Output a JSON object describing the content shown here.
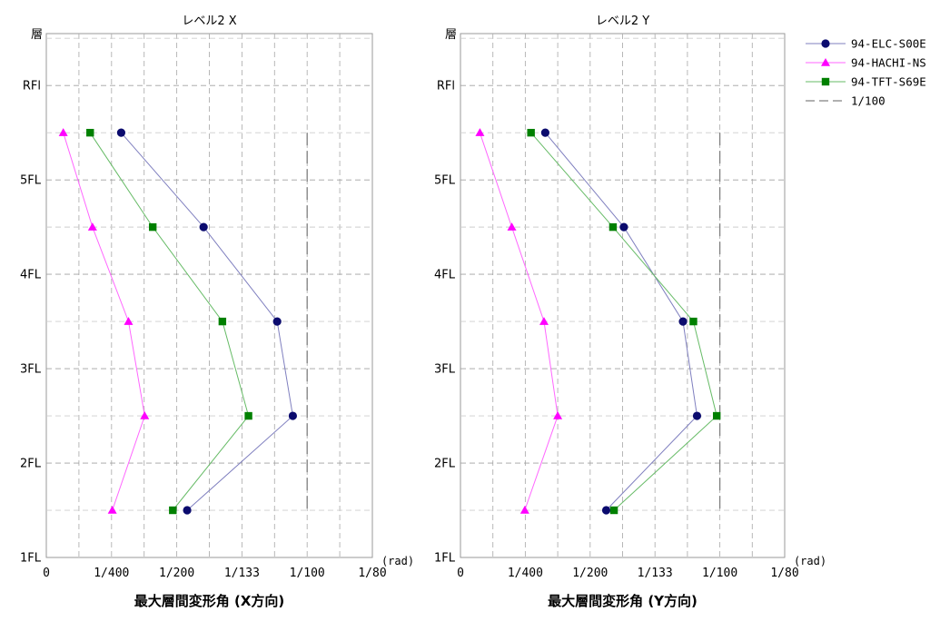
{
  "chart_data": [
    {
      "type": "line",
      "title": "レベル2 X",
      "xlabel": "最大層間変形角 (X方向)",
      "ylabel": "層",
      "x_unit": "(rad)",
      "x_ticks": [
        "0",
        "1/400",
        "1/200",
        "1/133",
        "1/100",
        "1/80"
      ],
      "x_tick_values": [
        0,
        0.0025,
        0.005,
        0.0075,
        0.01,
        0.0125
      ],
      "xlim": [
        0,
        0.0125
      ],
      "y_ticks": [
        "1FL",
        "2FL",
        "3FL",
        "4FL",
        "5FL",
        "RFl"
      ],
      "y_tick_values": [
        1,
        2,
        3,
        4,
        5,
        6
      ],
      "ylim": [
        1,
        6.55
      ],
      "grid": true,
      "series": [
        {
          "name": "94-ELC-S00E",
          "x": [
            0.0054,
            0.00945,
            0.00885,
            0.00603,
            0.00287
          ],
          "y": [
            1.5,
            2.5,
            3.5,
            4.5,
            5.5
          ]
        },
        {
          "name": "94-HACHI-NS",
          "x": [
            0.00253,
            0.00377,
            0.00315,
            0.00177,
            0.00065
          ],
          "y": [
            1.5,
            2.5,
            3.5,
            4.5,
            5.5
          ]
        },
        {
          "name": "94-TFT-S69E",
          "x": [
            0.00485,
            0.00775,
            0.00675,
            0.00408,
            0.00168
          ],
          "y": [
            1.5,
            2.5,
            3.5,
            4.5,
            5.5
          ]
        }
      ],
      "reference_line": {
        "name": "1/100",
        "x": 0.01,
        "y_range": [
          1.5,
          5.5
        ]
      }
    },
    {
      "type": "line",
      "title": "レベル2 Y",
      "xlabel": "最大層間変形角 (Y方向)",
      "ylabel": "層",
      "x_unit": "(rad)",
      "x_ticks": [
        "0",
        "1/400",
        "1/200",
        "1/133",
        "1/100",
        "1/80"
      ],
      "x_tick_values": [
        0,
        0.0025,
        0.005,
        0.0075,
        0.01,
        0.0125
      ],
      "xlim": [
        0,
        0.0125
      ],
      "y_ticks": [
        "1FL",
        "2FL",
        "3FL",
        "4FL",
        "5FL",
        "RFl"
      ],
      "y_tick_values": [
        1,
        2,
        3,
        4,
        5,
        6
      ],
      "ylim": [
        1,
        6.55
      ],
      "grid": true,
      "series": [
        {
          "name": "94-ELC-S00E",
          "x": [
            0.00562,
            0.00912,
            0.00858,
            0.0063,
            0.00327
          ],
          "y": [
            1.5,
            2.5,
            3.5,
            4.5,
            5.5
          ]
        },
        {
          "name": "94-HACHI-NS",
          "x": [
            0.00248,
            0.00375,
            0.00322,
            0.00198,
            0.00075
          ],
          "y": [
            1.5,
            2.5,
            3.5,
            4.5,
            5.5
          ]
        },
        {
          "name": "94-TFT-S69E",
          "x": [
            0.00592,
            0.00988,
            0.00898,
            0.00588,
            0.00272
          ],
          "y": [
            1.5,
            2.5,
            3.5,
            4.5,
            5.5
          ]
        }
      ],
      "reference_line": {
        "name": "1/100",
        "x": 0.01,
        "y_range": [
          1.5,
          5.5
        ]
      }
    }
  ],
  "legend": {
    "placement": "top-right",
    "entries": [
      {
        "label": "94-ELC-S00E",
        "marker": "circle",
        "color": "#0b0b6e",
        "line_color": "#7f7fbf"
      },
      {
        "label": "94-HACHI-NS",
        "marker": "triangle",
        "color": "#ff00ff",
        "line_color": "#ff66ff"
      },
      {
        "label": "94-TFT-S69E",
        "marker": "square",
        "color": "#008000",
        "line_color": "#66bb66"
      },
      {
        "label": "1/100",
        "marker": "dash",
        "color": "#808080",
        "line_color": "#808080"
      }
    ]
  }
}
